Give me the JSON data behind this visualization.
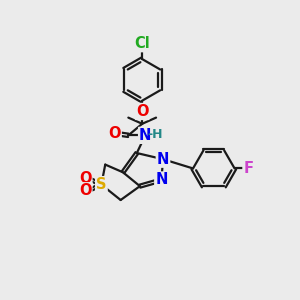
{
  "bg_color": "#ebebeb",
  "bond_color": "#1a1a1a",
  "bond_width": 1.6,
  "atom_colors": {
    "C": "#1a1a1a",
    "N": "#0000ee",
    "O": "#ee0000",
    "S": "#ddaa00",
    "Cl": "#22aa22",
    "F": "#cc44cc",
    "H": "#228888"
  },
  "font_size": 9.5
}
